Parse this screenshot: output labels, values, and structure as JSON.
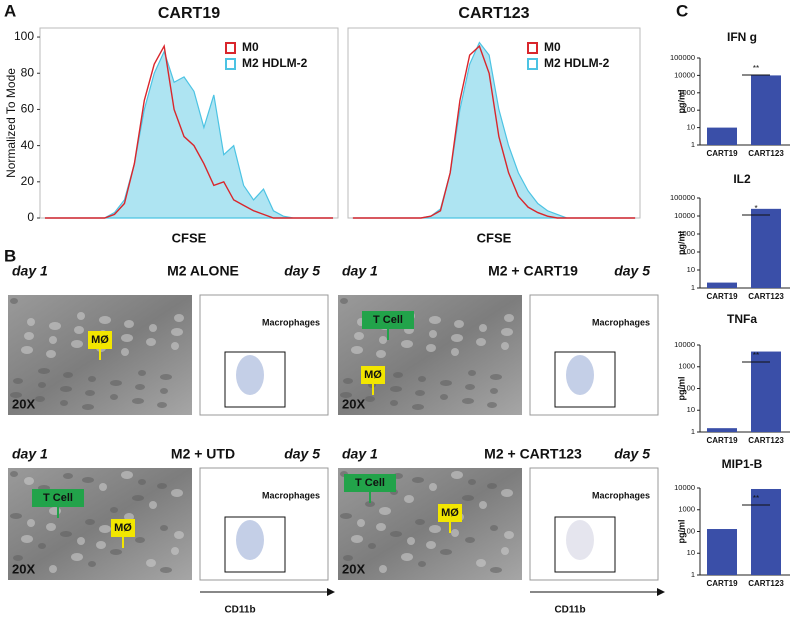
{
  "panel_labels": [
    "A",
    "B",
    "C"
  ],
  "chart_data": [
    {
      "type": "area",
      "title": "CART19",
      "xlabel": "CFSE",
      "ylabel": "Normalized To Mode",
      "categories": [
        null,
        null,
        null,
        null,
        null,
        null,
        null,
        null,
        null,
        null,
        null,
        null,
        null,
        null,
        null,
        null,
        null,
        null,
        null,
        null,
        null,
        null,
        null,
        null,
        null,
        null,
        null,
        null,
        null,
        null
      ],
      "ylim": [
        0,
        105
      ],
      "yticks": [
        0,
        20,
        40,
        60,
        80,
        100
      ],
      "legend": "top-right",
      "series": [
        {
          "name": "M2 HDLM-2",
          "color": "#4cc3e3",
          "filled": true,
          "values": [
            0,
            0,
            0,
            0,
            0,
            0,
            0,
            3,
            10,
            30,
            60,
            80,
            92,
            75,
            78,
            70,
            50,
            68,
            35,
            40,
            18,
            10,
            16,
            4,
            1,
            0,
            0,
            0,
            0,
            0
          ]
        },
        {
          "name": "M0",
          "color": "#d9262c",
          "filled": false,
          "values": [
            0,
            0,
            0,
            0,
            0,
            0,
            0,
            2,
            8,
            30,
            65,
            85,
            95,
            60,
            45,
            40,
            30,
            18,
            20,
            10,
            7,
            4,
            2,
            0,
            0,
            0,
            0,
            0,
            0,
            0
          ]
        }
      ]
    },
    {
      "type": "area",
      "title": "CART123",
      "xlabel": "CFSE",
      "categories": [
        null,
        null,
        null,
        null,
        null,
        null,
        null,
        null,
        null,
        null,
        null,
        null,
        null,
        null,
        null,
        null,
        null,
        null,
        null,
        null,
        null,
        null,
        null,
        null,
        null,
        null,
        null,
        null,
        null,
        null
      ],
      "ylim": [
        0,
        105
      ],
      "legend": "top-right",
      "series": [
        {
          "name": "M2 HDLM-2",
          "color": "#4cc3e3",
          "filled": true,
          "values": [
            0,
            0,
            0,
            0,
            0,
            0,
            0,
            0,
            1,
            5,
            25,
            60,
            85,
            97,
            90,
            60,
            40,
            25,
            15,
            8,
            4,
            2,
            0,
            0,
            0,
            0,
            0,
            0,
            0,
            0
          ]
        },
        {
          "name": "M0",
          "color": "#d9262c",
          "filled": false,
          "values": [
            0,
            0,
            0,
            0,
            0,
            0,
            0,
            0,
            1,
            4,
            25,
            65,
            90,
            95,
            80,
            45,
            25,
            12,
            6,
            3,
            1,
            0,
            0,
            0,
            0,
            0,
            0,
            0,
            0,
            0
          ]
        }
      ]
    },
    {
      "type": "bar",
      "title": "IFN g",
      "ylabel": "pg/ml",
      "log_scale": true,
      "color": "#3a4fa8",
      "categories": [
        "CART19",
        "CART123"
      ],
      "values": [
        10,
        10000
      ],
      "significance": "**",
      "ylim": [
        1,
        100000
      ],
      "yticks": [
        1,
        10,
        100,
        1000,
        10000,
        100000
      ]
    },
    {
      "type": "bar",
      "title": "IL2",
      "ylabel": "pg/ml",
      "log_scale": true,
      "color": "#3a4fa8",
      "categories": [
        "CART19",
        "CART123"
      ],
      "values": [
        2,
        25000
      ],
      "significance": "*",
      "ylim": [
        1,
        100000
      ],
      "yticks": [
        1,
        10,
        100,
        1000,
        10000,
        100000
      ]
    },
    {
      "type": "bar",
      "title": "TNFa",
      "ylabel": "pg/ml",
      "log_scale": true,
      "color": "#3a4fa8",
      "categories": [
        "CART19",
        "CART123"
      ],
      "values": [
        1.5,
        5000
      ],
      "significance": "**",
      "ylim": [
        1,
        10000
      ],
      "yticks": [
        1,
        10,
        100,
        1000,
        10000
      ]
    },
    {
      "type": "bar",
      "title": "MIP1-B",
      "ylabel": "pg/ml",
      "log_scale": true,
      "color": "#3a4fa8",
      "categories": [
        "CART19",
        "CART123"
      ],
      "values": [
        130,
        9000
      ],
      "significance": "**",
      "ylim": [
        1,
        10000
      ],
      "yticks": [
        1,
        10,
        100,
        1000,
        10000
      ]
    }
  ],
  "panel_b": {
    "x_label": "CD11b",
    "conditions": [
      {
        "day_start": "day 1",
        "title": "M2 ALONE",
        "day_end": "day 5",
        "magnification": "20X",
        "gate_label": "Macrophages",
        "cell_labels": [
          {
            "text": "MØ",
            "color": "#f2e600"
          }
        ]
      },
      {
        "day_start": "day 1",
        "title": "M2 + CART19",
        "day_end": "day 5",
        "magnification": "20X",
        "gate_label": "Macrophages",
        "cell_labels": [
          {
            "text": "T Cell",
            "color": "#22a34a"
          },
          {
            "text": "MØ",
            "color": "#f2e600"
          }
        ]
      },
      {
        "day_start": "day 1",
        "title": "M2 + UTD",
        "day_end": "day 5",
        "magnification": "20X",
        "gate_label": "Macrophages",
        "cell_labels": [
          {
            "text": "T Cell",
            "color": "#22a34a"
          },
          {
            "text": "MØ",
            "color": "#f2e600"
          }
        ]
      },
      {
        "day_start": "day 1",
        "title": "M2 + CART123",
        "day_end": "day 5",
        "magnification": "20X",
        "gate_label": "Macrophages",
        "cell_labels": [
          {
            "text": "T Cell",
            "color": "#22a34a"
          },
          {
            "text": "MØ",
            "color": "#f2e600"
          }
        ]
      }
    ]
  }
}
